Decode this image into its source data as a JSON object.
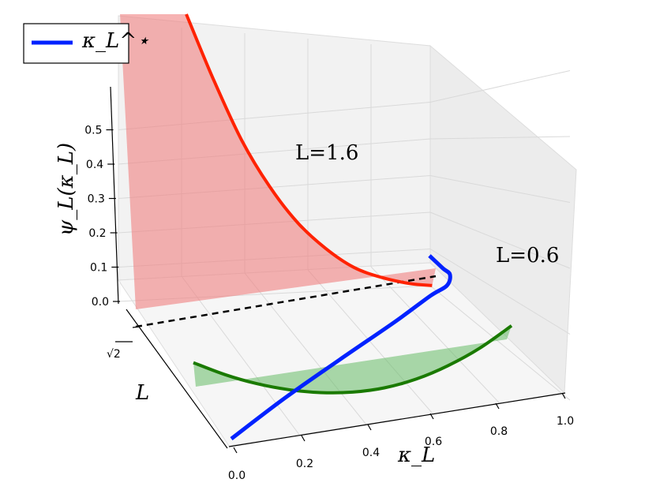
{
  "chart_data": {
    "type": "line",
    "legend": {
      "entries": [
        "κ_L^⋆"
      ],
      "placement": "top-left"
    },
    "axes": {
      "x": {
        "label": "κ_L",
        "ticks": [
          "0.0",
          "0.2",
          "0.4",
          "0.6",
          "0.8",
          "1.0"
        ],
        "range": [
          0,
          1
        ]
      },
      "y": {
        "label": "L",
        "ticks": [
          "√2"
        ]
      },
      "z": {
        "label": "ψ_L(κ_L)",
        "ticks": [
          "0.0",
          "0.1",
          "0.2",
          "0.3",
          "0.4",
          "0.5"
        ],
        "range": [
          0,
          0.55
        ]
      }
    },
    "annotations": [
      {
        "text": "L=1.6",
        "target": "red curve"
      },
      {
        "text": "L=0.6",
        "target": "green curve"
      }
    ],
    "series": [
      {
        "name": "L=1.6",
        "color": "#ff2200",
        "fill": "#f08080",
        "x": [
          0.0,
          0.1,
          0.2,
          0.3,
          0.4,
          0.5,
          0.6,
          0.7,
          0.8,
          0.88
        ],
        "y": [
          0.9,
          0.66,
          0.49,
          0.36,
          0.26,
          0.19,
          0.14,
          0.115,
          0.102,
          0.1
        ]
      },
      {
        "name": "L=0.6",
        "color": "#1a7a00",
        "fill": "#66bb66",
        "x": [
          0.0,
          0.1,
          0.2,
          0.3,
          0.4,
          0.5,
          0.6,
          0.7,
          0.8,
          0.9,
          1.0
        ],
        "y": [
          0.13,
          0.092,
          0.062,
          0.04,
          0.026,
          0.021,
          0.026,
          0.043,
          0.072,
          0.112,
          0.165
        ]
      },
      {
        "name": "κ_L^⋆",
        "color": "#0022ff",
        "points": [
          [
            0.0,
            0.15,
            0.0
          ],
          [
            0.3,
            0.6,
            0.0
          ],
          [
            0.55,
            0.95,
            0.0
          ],
          [
            0.72,
            1.25,
            0.0
          ],
          [
            0.8,
            1.45,
            0.05
          ],
          [
            0.8,
            1.6,
            0.1
          ],
          [
            0.77,
            1.62,
            0.13
          ]
        ]
      }
    ],
    "reference_line": {
      "style": "dashed",
      "color": "#000000",
      "L": "√2",
      "x_range": [
        0,
        1
      ]
    }
  }
}
